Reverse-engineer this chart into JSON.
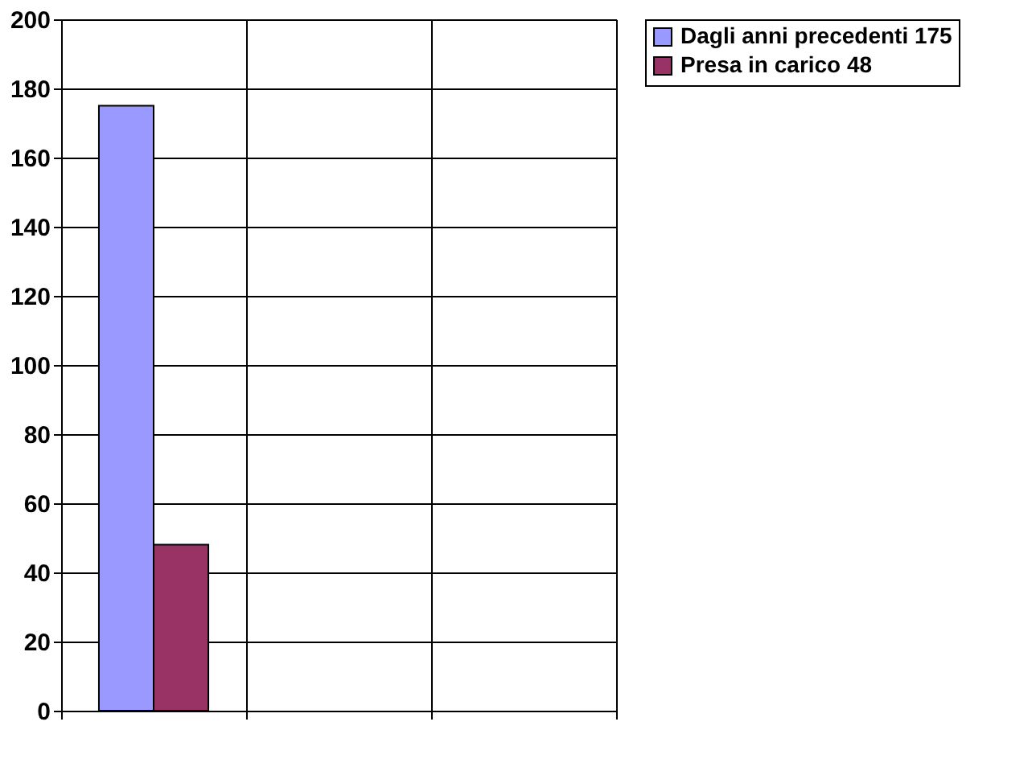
{
  "chart_data": {
    "type": "bar",
    "categories": [
      null,
      null,
      null
    ],
    "series": [
      {
        "name": "Dagli anni precedenti 175",
        "color": "#9999ff",
        "values": [
          175,
          null,
          null
        ]
      },
      {
        "name": "Presa in carico 48",
        "color": "#993366",
        "values": [
          48,
          null,
          null
        ]
      }
    ],
    "ylim": [
      0,
      200
    ],
    "yticks": [
      0,
      20,
      40,
      60,
      80,
      100,
      120,
      140,
      160,
      180,
      200
    ],
    "grid": true,
    "legend": "right"
  }
}
